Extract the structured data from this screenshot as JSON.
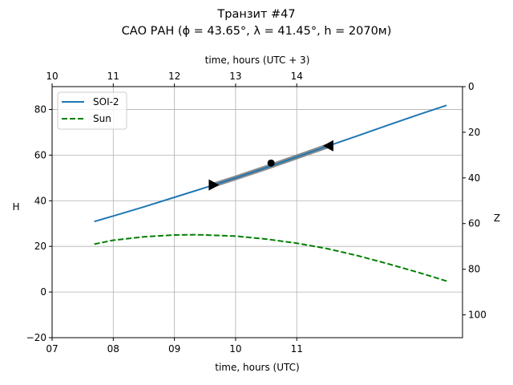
{
  "chart_data": {
    "type": "line",
    "title": "Транзит #47",
    "subtitle": "САО РАН (ϕ = 43.65°, λ = 41.45°, h = 2070м)",
    "xlabel": "time, hours (UTC)",
    "xlabel_top": "time, hours (UTC + 3)",
    "ylabel": "H",
    "ylabel_right": "Z",
    "xlim": [
      7,
      13.71
    ],
    "ylim": [
      -20,
      90
    ],
    "ylim_right": [
      110,
      0
    ],
    "x_ticks": [
      {
        "v": 7,
        "label": "07"
      },
      {
        "v": 8,
        "label": "08"
      },
      {
        "v": 9,
        "label": "09"
      },
      {
        "v": 10,
        "label": "10"
      },
      {
        "v": 11,
        "label": "11"
      }
    ],
    "x_top_ticks": [
      {
        "v": 7,
        "label": "10"
      },
      {
        "v": 8,
        "label": "11"
      },
      {
        "v": 9,
        "label": "12"
      },
      {
        "v": 10,
        "label": "13"
      },
      {
        "v": 11,
        "label": "14"
      }
    ],
    "y_ticks": [
      {
        "v": -20,
        "label": "−20"
      },
      {
        "v": 0,
        "label": "0"
      },
      {
        "v": 20,
        "label": "20"
      },
      {
        "v": 40,
        "label": "40"
      },
      {
        "v": 60,
        "label": "60"
      },
      {
        "v": 80,
        "label": "80"
      }
    ],
    "y_right_ticks": [
      {
        "v": 0,
        "label": "0"
      },
      {
        "v": 20,
        "label": "20"
      },
      {
        "v": 40,
        "label": "40"
      },
      {
        "v": 60,
        "label": "60"
      },
      {
        "v": 80,
        "label": "80"
      },
      {
        "v": 100,
        "label": "100"
      }
    ],
    "grid": true,
    "legend_position": "top-left",
    "series": [
      {
        "name": "SOI-2",
        "color": "#1f77b4",
        "style": "solid",
        "x": [
          7.69,
          8,
          8.5,
          9,
          9.5,
          10,
          10.5,
          11,
          11.5,
          12,
          12.5,
          13,
          13.45
        ],
        "y": [
          30.9,
          33.3,
          37.3,
          41.5,
          45.7,
          50.0,
          54.5,
          59.2,
          63.9,
          68.5,
          73.2,
          77.8,
          81.8
        ]
      },
      {
        "name": "Sun",
        "color": "#008000",
        "style": "dashed",
        "x": [
          7.69,
          8,
          8.5,
          9,
          9.36,
          9.5,
          10,
          10.5,
          11,
          11.5,
          12,
          12.5,
          13,
          13.45
        ],
        "y": [
          21,
          22.7,
          24.2,
          25,
          25.1,
          25.0,
          24.5,
          23.2,
          21.4,
          19.0,
          15.9,
          12.3,
          8.5,
          4.8
        ]
      }
    ],
    "transit": {
      "start_x": 9.64,
      "end_x": 11.52,
      "mid_x": 10.58,
      "mid_y": 56.5,
      "color": "#808080"
    }
  }
}
